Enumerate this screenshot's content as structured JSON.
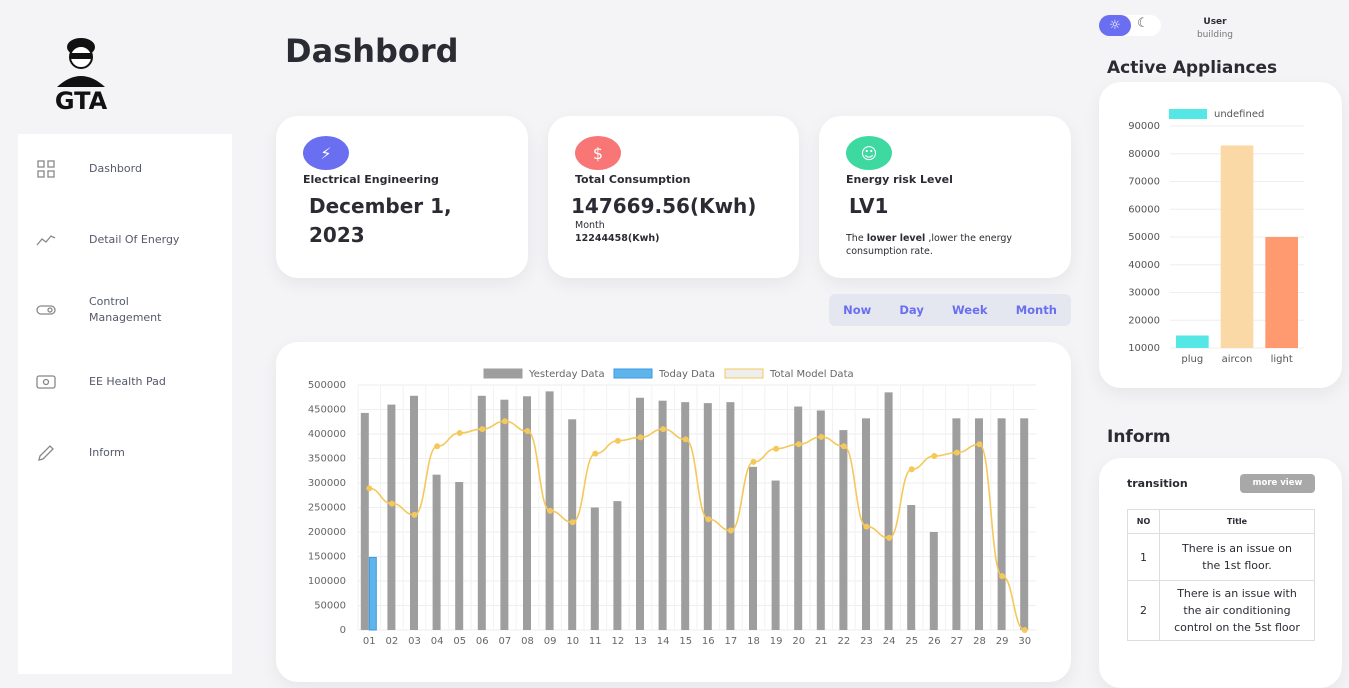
{
  "logo": {
    "text": "GTA"
  },
  "sidebar": {
    "items": [
      {
        "label": "Dashbord",
        "icon": "grid-icon"
      },
      {
        "label": "Detail Of Energy",
        "icon": "trend-icon"
      },
      {
        "label": "Control Management",
        "icon": "toggle-icon"
      },
      {
        "label": "EE Health Pad",
        "icon": "eye-icon"
      },
      {
        "label": "Inform",
        "icon": "pencil-icon"
      }
    ]
  },
  "header": {
    "title": "Dashbord",
    "user": "User",
    "user_sub": "building"
  },
  "cards": [
    {
      "label": "Electrical Engineering",
      "value": "December 1, 2023",
      "icon": "lightning-icon",
      "color": "#6a6ef0"
    },
    {
      "label": "Total Consumption",
      "value": "147669.56(Kwh)",
      "sub_label": "Month",
      "sub_value": "12244458(Kwh)",
      "icon": "dollar-icon",
      "color": "#f87676"
    },
    {
      "label": "Energy risk Level",
      "value": "LV1",
      "desc_bold": "lower level",
      "desc_pre": "The ",
      "desc_post": " ,lower the energy consumption rate.",
      "icon": "smile-icon",
      "color": "#3dd9a0"
    }
  ],
  "periods": [
    "Now",
    "Day",
    "Week",
    "Month"
  ],
  "chart_data": [
    {
      "type": "bar",
      "title": "",
      "categories": [
        "01",
        "02",
        "03",
        "04",
        "05",
        "06",
        "07",
        "08",
        "09",
        "10",
        "11",
        "12",
        "13",
        "14",
        "15",
        "16",
        "17",
        "18",
        "19",
        "20",
        "21",
        "22",
        "23",
        "24",
        "25",
        "26",
        "27",
        "28",
        "29",
        "30"
      ],
      "ylim": [
        0,
        500000
      ],
      "yticks": [
        0,
        50000,
        100000,
        150000,
        200000,
        250000,
        300000,
        350000,
        400000,
        450000,
        500000
      ],
      "legend": "top",
      "series": [
        {
          "name": "Yesterday Data",
          "type": "bar",
          "color": "#9e9e9e",
          "values": [
            443000,
            460000,
            478000,
            317000,
            302000,
            478000,
            470000,
            477000,
            487000,
            430000,
            250000,
            263000,
            474000,
            468000,
            465000,
            463000,
            465000,
            333000,
            305000,
            456000,
            448000,
            408000,
            432000,
            485000,
            255000,
            200000,
            432000,
            432000,
            432000,
            432000
          ]
        },
        {
          "name": "Today Data",
          "type": "bar",
          "color": "#5fb4ec",
          "values": [
            148000,
            null,
            null,
            null,
            null,
            null,
            null,
            null,
            null,
            null,
            null,
            null,
            null,
            null,
            null,
            null,
            null,
            null,
            null,
            null,
            null,
            null,
            null,
            null,
            null,
            null,
            null,
            null,
            null,
            null
          ]
        },
        {
          "name": "Total Model Data",
          "type": "line",
          "color": "#f5c85a",
          "values": [
            289000,
            258000,
            235000,
            375000,
            402000,
            410000,
            426000,
            406000,
            243000,
            220000,
            360000,
            386000,
            393000,
            410000,
            389000,
            226000,
            203000,
            343000,
            370000,
            379000,
            394000,
            375000,
            211000,
            188000,
            328000,
            355000,
            362000,
            379000,
            110000,
            0
          ]
        }
      ]
    },
    {
      "type": "bar",
      "title": "Active Appliances",
      "categories": [
        "plug",
        "aircon",
        "light"
      ],
      "ylim": [
        10000,
        90000
      ],
      "yticks": [
        10000,
        20000,
        30000,
        40000,
        50000,
        60000,
        70000,
        80000,
        90000
      ],
      "legend": "top",
      "series": [
        {
          "name": "undefined",
          "values": [
            14500,
            83000,
            50000
          ],
          "colors": [
            "#55e6e6",
            "#fbd9a6",
            "#ff9a70"
          ]
        }
      ]
    }
  ],
  "inform": {
    "title": "Inform",
    "section": "transition",
    "more": "more view",
    "columns": [
      "NO",
      "Title"
    ],
    "rows": [
      {
        "no": "1",
        "title": "There is an issue on the 1st floor."
      },
      {
        "no": "2",
        "title": "There is an issue with the air conditioning control on the 5st floor"
      }
    ]
  }
}
